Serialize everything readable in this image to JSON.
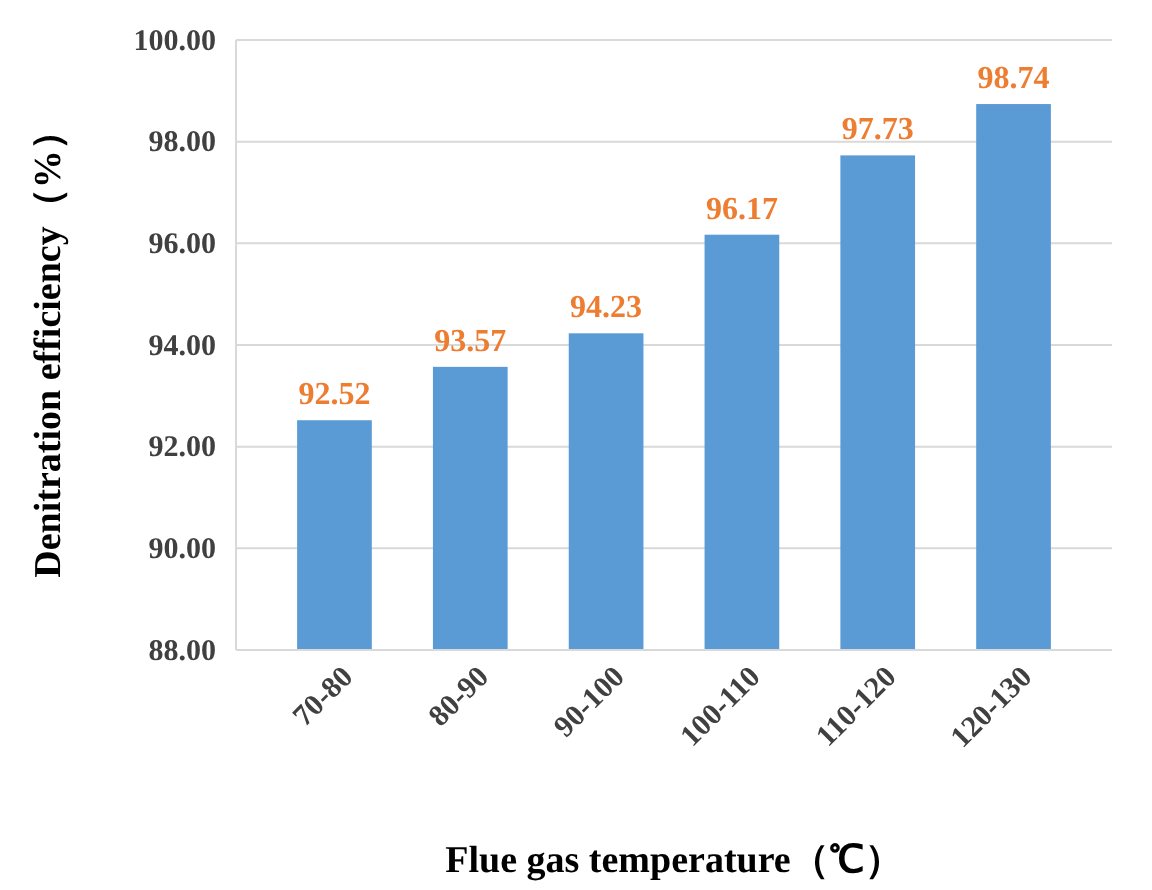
{
  "chart_data": {
    "type": "bar",
    "xlabel": "Flue gas temperature（℃）",
    "ylabel": "Denitration efficiency（%）",
    "categories": [
      "70-80",
      "80-90",
      "90-100",
      "100-110",
      "110-120",
      "120-130"
    ],
    "values": [
      92.52,
      93.57,
      94.23,
      96.17,
      97.73,
      98.74
    ],
    "color": "#5b9bd5",
    "data_labels": true,
    "grid": "y",
    "ylim": [
      88,
      100
    ],
    "yticks": [
      {
        "value": 88,
        "label": "88.00"
      },
      {
        "value": 90,
        "label": "90.00"
      },
      {
        "value": 92,
        "label": "92.00"
      },
      {
        "value": 94,
        "label": "94.00"
      },
      {
        "value": 96,
        "label": "96.00"
      },
      {
        "value": 98,
        "label": "98.00"
      },
      {
        "value": 100,
        "label": "100.00"
      }
    ]
  }
}
